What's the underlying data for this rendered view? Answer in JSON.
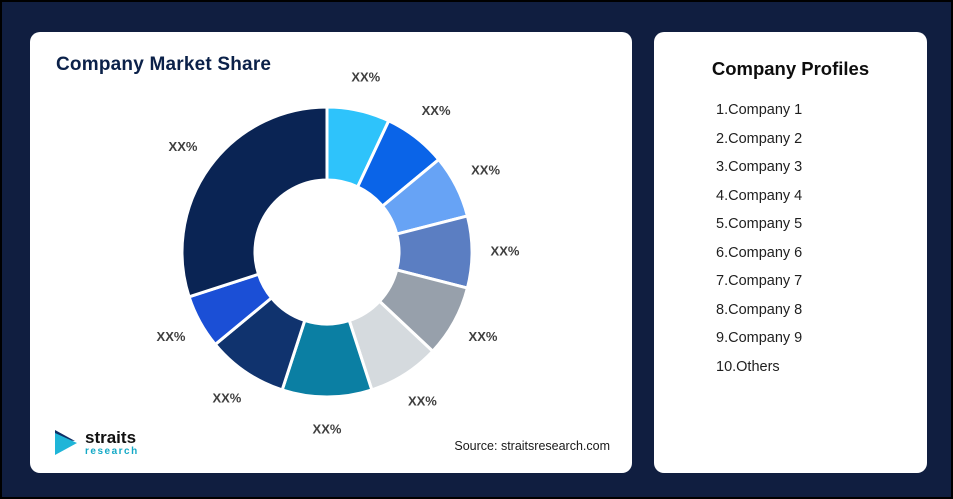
{
  "page": {
    "background_color": "#101e40"
  },
  "left_card": {
    "title": "Company Market Share",
    "source": "Source: straitsresearch.com",
    "logo": {
      "name": "straits",
      "sub": "research",
      "accent_color": "#14a9c6"
    }
  },
  "right_card": {
    "title": "Company Profiles",
    "items": [
      "1.Company 1",
      "2.Company 2",
      "3.Company 3",
      "4.Company 4",
      "5.Company 5",
      "6.Company 6",
      "7.Company 7",
      "8.Company 8",
      "9.Company 9",
      "10.Others"
    ]
  },
  "chart_data": {
    "type": "pie",
    "donut": true,
    "title": "Company Market Share",
    "categories": [
      "Company 1",
      "Company 2",
      "Company 3",
      "Company 4",
      "Company 5",
      "Company 6",
      "Company 7",
      "Company 8",
      "Company 9",
      "Others"
    ],
    "values": [
      7,
      7,
      7,
      8,
      8,
      8,
      10,
      9,
      6,
      30
    ],
    "labels": [
      "XX%",
      "XX%",
      "XX%",
      "XX%",
      "XX%",
      "XX%",
      "XX%",
      "XX%",
      "XX%",
      "XX%"
    ],
    "colors": [
      "#2ec3fb",
      "#0a64e8",
      "#67a3f5",
      "#5b7ec2",
      "#97a0ab",
      "#d5dade",
      "#0b7fa3",
      "#10336e",
      "#1b4fd6",
      "#0a2454"
    ],
    "start_angle_deg": 0,
    "legend_position": "none",
    "stroke_color": "#ffffff"
  }
}
